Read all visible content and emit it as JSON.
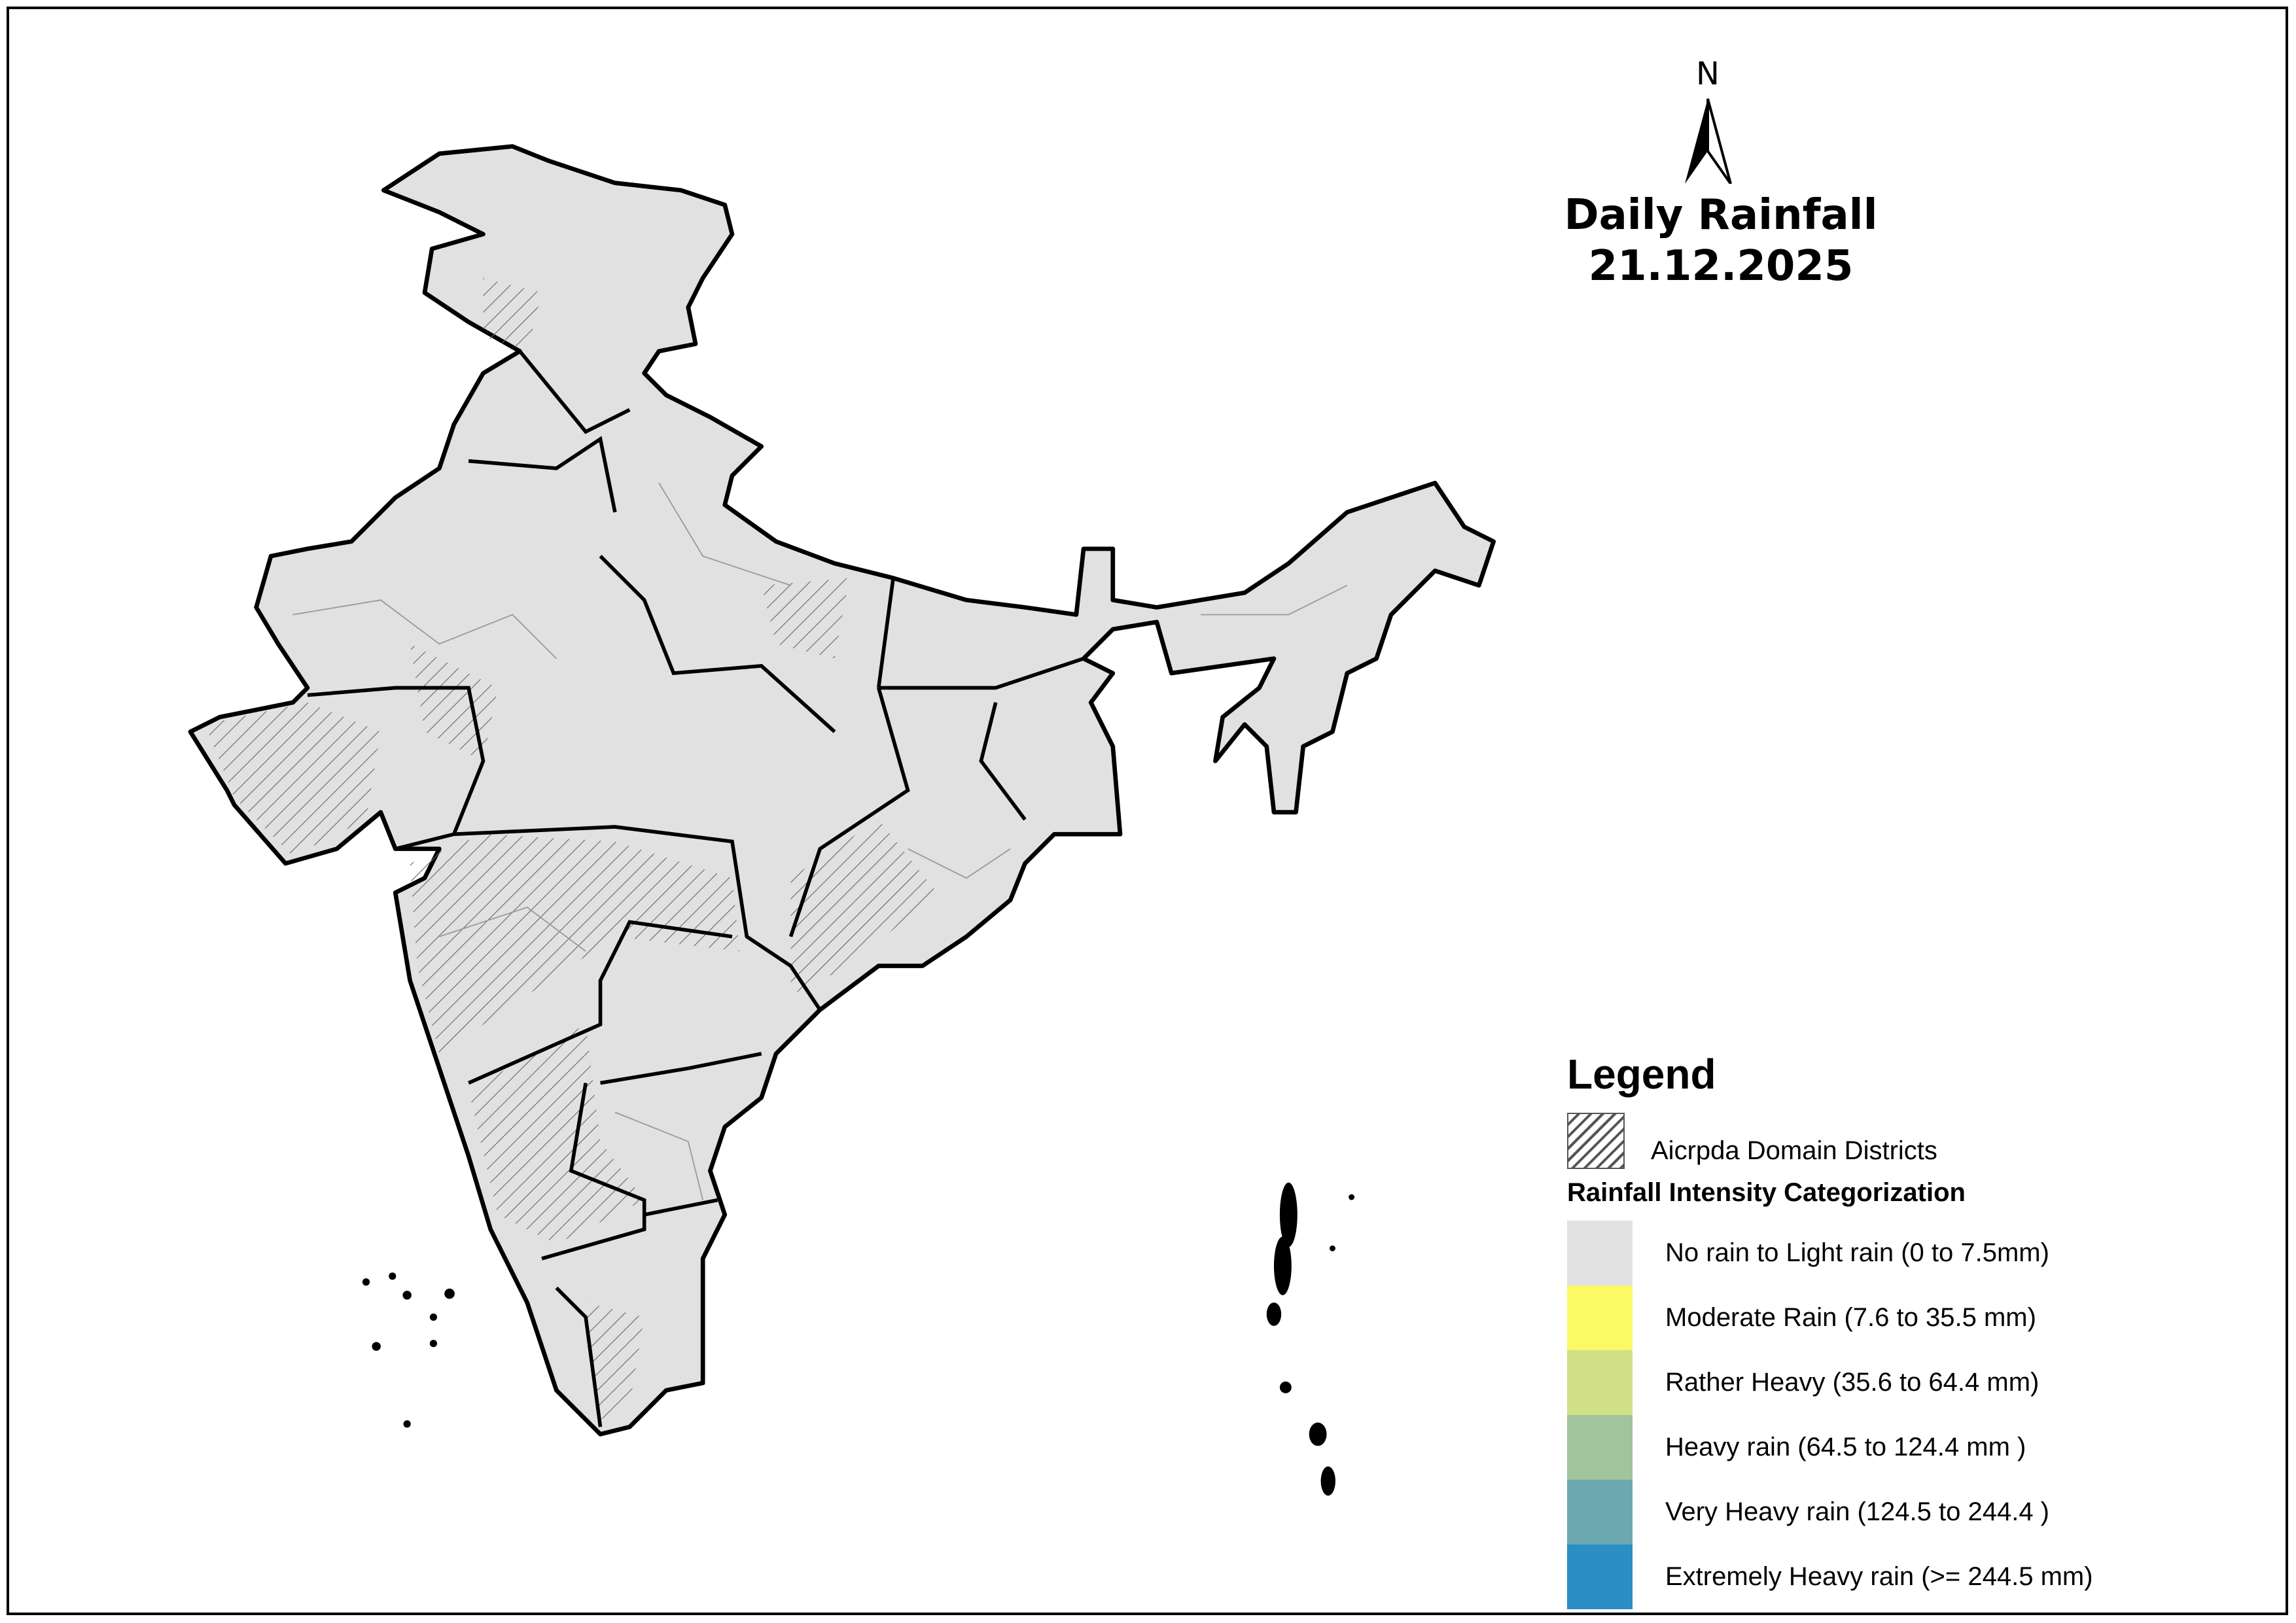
{
  "title": {
    "line1": "Daily Rainfall",
    "line2": "21.12.2025"
  },
  "north_arrow": {
    "label": "N",
    "icon": "north-arrow-icon"
  },
  "legend": {
    "title": "Legend",
    "hatch_label": "Aicrpda Domain Districts",
    "subtitle": "Rainfall Intensity Categorization",
    "categories": [
      {
        "label": "No rain to Light rain (0 to 7.5mm)",
        "color": "#e1e1e1"
      },
      {
        "label": "Moderate Rain (7.6 to 35.5 mm)",
        "color": "#fafa64"
      },
      {
        "label": "Rather Heavy (35.6 to 64.4 mm)",
        "color": "#d1e087"
      },
      {
        "label": "Heavy rain (64.5 to 124.4 mm )",
        "color": "#a1c49c"
      },
      {
        "label": "Very Heavy rain (124.5 to 244.4 )",
        "color": "#6ca8b0"
      },
      {
        "label": "Extremely Heavy rain  (>= 244.5 mm)",
        "color": "#2b8fc6"
      }
    ]
  },
  "map": {
    "region": "India",
    "fill_category": "No rain to Light rain (0 to 7.5mm)",
    "fill_color": "#e1e1e1"
  }
}
